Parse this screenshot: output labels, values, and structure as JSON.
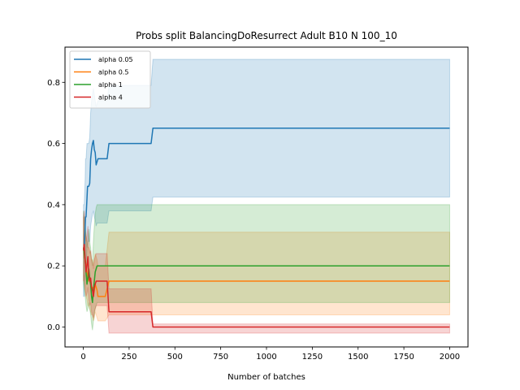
{
  "chart_data": {
    "type": "line",
    "title": "Probs split BalancingDoResurrect Adult B10 N 100_10",
    "xlabel": "Number of batches",
    "ylabel": "",
    "xlim": [
      -100,
      2100
    ],
    "ylim": [
      -0.065,
      0.915
    ],
    "xticks": [
      0,
      250,
      500,
      750,
      1000,
      1250,
      1500,
      1750,
      2000
    ],
    "yticks": [
      0.0,
      0.2,
      0.4,
      0.6,
      0.8
    ],
    "ytick_labels": [
      "0.0",
      "0.2",
      "0.4",
      "0.6",
      "0.8"
    ],
    "grid": false,
    "legend_position": "top-left",
    "series": [
      {
        "name": "alpha 0.05",
        "color": "#1f77b4",
        "x": [
          1,
          5,
          10,
          12,
          15,
          20,
          23,
          25,
          28,
          30,
          35,
          40,
          45,
          50,
          55,
          60,
          65,
          70,
          75,
          80,
          90,
          100,
          110,
          120,
          130,
          140,
          150,
          200,
          250,
          300,
          350,
          370,
          380,
          400,
          500,
          750,
          1000,
          1250,
          1500,
          1750,
          2000
        ],
        "y": [
          0.26,
          0.25,
          0.33,
          0.36,
          0.36,
          0.42,
          0.46,
          0.46,
          0.46,
          0.46,
          0.47,
          0.55,
          0.58,
          0.6,
          0.61,
          0.58,
          0.57,
          0.53,
          0.54,
          0.55,
          0.55,
          0.55,
          0.55,
          0.55,
          0.55,
          0.6,
          0.6,
          0.6,
          0.6,
          0.6,
          0.6,
          0.6,
          0.65,
          0.65,
          0.65,
          0.65,
          0.65,
          0.65,
          0.65,
          0.65,
          0.65
        ],
        "lower": [
          0.1,
          0.1,
          0.18,
          0.2,
          0.21,
          0.25,
          0.28,
          0.28,
          0.28,
          0.28,
          0.28,
          0.33,
          0.35,
          0.37,
          0.38,
          0.36,
          0.35,
          0.33,
          0.34,
          0.34,
          0.34,
          0.34,
          0.34,
          0.34,
          0.34,
          0.38,
          0.38,
          0.38,
          0.38,
          0.38,
          0.38,
          0.38,
          0.425,
          0.425,
          0.425,
          0.425,
          0.425,
          0.425,
          0.425,
          0.425,
          0.425
        ],
        "upper": [
          0.4,
          0.4,
          0.48,
          0.55,
          0.55,
          0.6,
          0.6,
          0.6,
          0.6,
          0.6,
          0.62,
          0.7,
          0.74,
          0.76,
          0.78,
          0.76,
          0.74,
          0.72,
          0.73,
          0.74,
          0.74,
          0.74,
          0.74,
          0.74,
          0.74,
          0.79,
          0.79,
          0.79,
          0.79,
          0.79,
          0.79,
          0.79,
          0.875,
          0.875,
          0.875,
          0.875,
          0.875,
          0.875,
          0.875,
          0.875,
          0.875
        ]
      },
      {
        "name": "alpha 0.5",
        "color": "#ff7f0e",
        "x": [
          1,
          5,
          10,
          15,
          20,
          25,
          30,
          35,
          40,
          45,
          50,
          55,
          60,
          65,
          70,
          75,
          80,
          90,
          100,
          120,
          140,
          200,
          300,
          370,
          380,
          500,
          750,
          1000,
          1250,
          1500,
          1750,
          2000
        ],
        "y": [
          0.26,
          0.24,
          0.22,
          0.2,
          0.18,
          0.15,
          0.16,
          0.15,
          0.14,
          0.12,
          0.13,
          0.1,
          0.12,
          0.14,
          0.13,
          0.12,
          0.1,
          0.1,
          0.1,
          0.1,
          0.15,
          0.15,
          0.15,
          0.15,
          0.15,
          0.15,
          0.15,
          0.15,
          0.15,
          0.15,
          0.15,
          0.15
        ],
        "lower": [
          0.15,
          0.14,
          0.12,
          0.1,
          0.09,
          0.07,
          0.07,
          0.06,
          0.05,
          0.04,
          0.04,
          0.02,
          0.03,
          0.05,
          0.04,
          0.03,
          0.02,
          0.02,
          0.02,
          0.02,
          0.04,
          0.04,
          0.04,
          0.04,
          0.04,
          0.04,
          0.04,
          0.04,
          0.04,
          0.04,
          0.04,
          0.04
        ],
        "upper": [
          0.36,
          0.34,
          0.32,
          0.3,
          0.28,
          0.26,
          0.26,
          0.25,
          0.24,
          0.22,
          0.22,
          0.2,
          0.22,
          0.24,
          0.23,
          0.22,
          0.2,
          0.2,
          0.2,
          0.2,
          0.31,
          0.31,
          0.31,
          0.31,
          0.31,
          0.31,
          0.31,
          0.31,
          0.31,
          0.31,
          0.31,
          0.31
        ]
      },
      {
        "name": "alpha 1",
        "color": "#2ca02c",
        "x": [
          1,
          5,
          10,
          15,
          20,
          25,
          30,
          35,
          40,
          45,
          50,
          55,
          60,
          65,
          70,
          75,
          80,
          100,
          140,
          200,
          300,
          370,
          380,
          500,
          750,
          1000,
          1250,
          1500,
          1750,
          2000
        ],
        "y": [
          0.26,
          0.24,
          0.22,
          0.18,
          0.14,
          0.16,
          0.19,
          0.16,
          0.14,
          0.1,
          0.08,
          0.12,
          0.15,
          0.18,
          0.19,
          0.2,
          0.2,
          0.2,
          0.2,
          0.2,
          0.2,
          0.2,
          0.2,
          0.2,
          0.2,
          0.2,
          0.2,
          0.2,
          0.2,
          0.2
        ],
        "lower": [
          0.14,
          0.12,
          0.1,
          0.07,
          0.05,
          0.06,
          0.08,
          0.06,
          0.04,
          0.01,
          -0.01,
          0.02,
          0.04,
          0.06,
          0.07,
          0.08,
          0.08,
          0.08,
          0.08,
          0.08,
          0.08,
          0.08,
          0.08,
          0.08,
          0.08,
          0.08,
          0.08,
          0.08,
          0.08,
          0.08
        ],
        "upper": [
          0.38,
          0.36,
          0.34,
          0.3,
          0.26,
          0.28,
          0.32,
          0.28,
          0.26,
          0.22,
          0.2,
          0.28,
          0.33,
          0.37,
          0.39,
          0.4,
          0.4,
          0.4,
          0.4,
          0.4,
          0.4,
          0.4,
          0.4,
          0.4,
          0.4,
          0.4,
          0.4,
          0.4,
          0.4,
          0.4
        ]
      },
      {
        "name": "alpha 4",
        "color": "#d62728",
        "x": [
          1,
          5,
          10,
          15,
          20,
          25,
          30,
          35,
          40,
          45,
          50,
          55,
          60,
          65,
          70,
          75,
          80,
          90,
          100,
          120,
          130,
          140,
          200,
          300,
          370,
          380,
          500,
          750,
          1000,
          1250,
          1500,
          1750,
          2000
        ],
        "y": [
          0.25,
          0.27,
          0.22,
          0.18,
          0.2,
          0.23,
          0.17,
          0.15,
          0.16,
          0.13,
          0.12,
          0.1,
          0.13,
          0.14,
          0.15,
          0.15,
          0.15,
          0.15,
          0.15,
          0.15,
          0.15,
          0.05,
          0.05,
          0.05,
          0.05,
          0.0,
          0.0,
          0.0,
          0.0,
          0.0,
          0.0,
          0.0,
          0.0
        ],
        "lower": [
          0.15,
          0.17,
          0.13,
          0.1,
          0.11,
          0.13,
          0.09,
          0.07,
          0.08,
          0.05,
          0.04,
          0.03,
          0.05,
          0.06,
          0.07,
          0.07,
          0.07,
          0.07,
          0.07,
          0.07,
          0.07,
          -0.02,
          -0.02,
          -0.02,
          -0.02,
          -0.02,
          -0.02,
          -0.02,
          -0.02,
          -0.02,
          -0.02,
          -0.02,
          -0.02
        ],
        "upper": [
          0.36,
          0.38,
          0.32,
          0.28,
          0.3,
          0.33,
          0.27,
          0.24,
          0.25,
          0.22,
          0.21,
          0.19,
          0.22,
          0.23,
          0.24,
          0.24,
          0.24,
          0.24,
          0.24,
          0.24,
          0.24,
          0.125,
          0.125,
          0.125,
          0.125,
          0.01,
          0.01,
          0.01,
          0.01,
          0.01,
          0.01,
          0.01,
          0.01
        ]
      }
    ]
  }
}
